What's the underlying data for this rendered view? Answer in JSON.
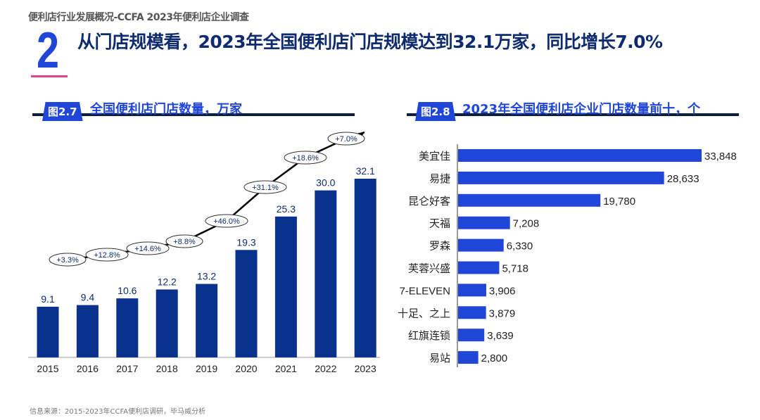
{
  "header": {
    "kicker": "便利店行业发展概况-CCFA 2023年便利店企业调查",
    "section_number": "2",
    "headline": "从门店规模看，2023年全国便利店门店规模达到32.1万家，同比增长7.0%"
  },
  "colors": {
    "bar_left": "#0a318c",
    "bar_right": "#1f46d6",
    "accent": "#1f46d6",
    "underline": "#e0458f"
  },
  "chart_data": [
    {
      "type": "bar",
      "fig_label": "图2.7",
      "title": "全国便利店门店数量，万家",
      "categories": [
        "2015",
        "2016",
        "2017",
        "2018",
        "2019",
        "2020",
        "2021",
        "2022",
        "2023"
      ],
      "values": [
        9.1,
        9.4,
        10.6,
        12.2,
        13.2,
        19.3,
        25.3,
        30.0,
        32.1
      ],
      "value_labels": [
        "9.1",
        "9.4",
        "10.6",
        "12.2",
        "13.2",
        "19.3",
        "25.3",
        "30.0",
        "32.1"
      ],
      "growth_labels": [
        "+3.3%",
        "+12.8%",
        "+14.6%",
        "+8.8%",
        "+46.0%",
        "+31.1%",
        "+18.6%",
        "+7.0%"
      ],
      "ylim": [
        0,
        32.1
      ]
    },
    {
      "type": "bar",
      "orientation": "horizontal",
      "fig_label": "图2.8",
      "title": "2023年全国便利店企业门店数量前十，个",
      "categories": [
        "美宜佳",
        "易捷",
        "昆仑好客",
        "天福",
        "罗森",
        "芙蓉兴盛",
        "7-ELEVEN",
        "十足、之上",
        "红旗连锁",
        "易站"
      ],
      "values": [
        33848,
        28633,
        19780,
        7208,
        6330,
        5718,
        3906,
        3879,
        3639,
        2800
      ],
      "value_labels": [
        "33,848",
        "28,633",
        "19,780",
        "7,208",
        "6,330",
        "5,718",
        "3,906",
        "3,879",
        "3,639",
        "2,800"
      ]
    }
  ],
  "footer": {
    "source": "信息来源：2015-2023年CCFA便利店调研，毕马威分析"
  }
}
